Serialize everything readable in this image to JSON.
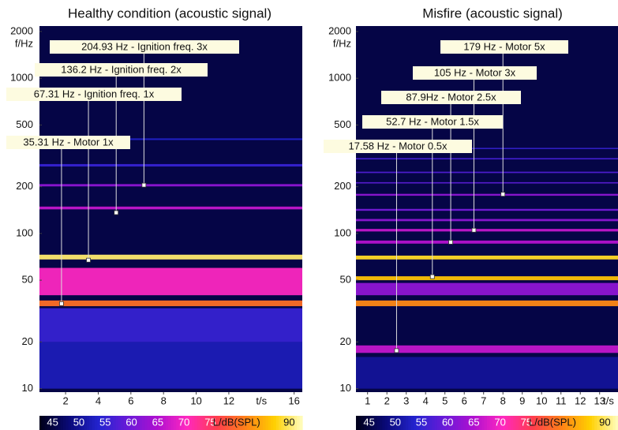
{
  "chart_data": [
    {
      "type": "spectrogram",
      "title": "Healthy condition (acoustic signal)",
      "ylabel": "f/Hz",
      "xlabel": "t/s",
      "ylog": true,
      "ylim": [
        9.5,
        2170
      ],
      "yticks": [
        10,
        20,
        50,
        100,
        200,
        500,
        1000,
        2000
      ],
      "xlim": [
        0.4,
        16.5
      ],
      "xticks": [
        2,
        4,
        6,
        8,
        10,
        12,
        16
      ],
      "clim": [
        42.5,
        92.5
      ],
      "cticks": [
        45,
        50,
        55,
        60,
        65,
        70,
        75,
        90
      ],
      "clabel": "L/dB(SPL)",
      "colormap": [
        "#00001c",
        "#0a0a7a",
        "#2424d0",
        "#6a1ad8",
        "#b010d0",
        "#ff28c0",
        "#ff3c50",
        "#ff8018",
        "#ffd000",
        "#ffffc8"
      ],
      "background_level": 45,
      "bands": [
        {
          "f_low": 10,
          "f_high": 20,
          "level": 52
        },
        {
          "f_low": 20,
          "f_high": 33,
          "level": 55
        },
        {
          "f_low": 40,
          "f_high": 60,
          "level": 70
        },
        {
          "f_low": 34,
          "f_high": 37,
          "level": 80
        },
        {
          "f_low": 68,
          "f_high": 73,
          "level": 90
        },
        {
          "f_low": 143,
          "f_high": 149,
          "level": 66
        },
        {
          "f_low": 201,
          "f_high": 208,
          "level": 62
        },
        {
          "f_low": 270,
          "f_high": 280,
          "level": 55
        },
        {
          "f_low": 400,
          "f_high": 410,
          "level": 53
        }
      ],
      "annotations": [
        {
          "label": "204.93 Hz - Ignition freq. 3x",
          "x": 6.8,
          "y": 204.93
        },
        {
          "label": "136.2 Hz - Ignition freq. 2x",
          "x": 5.1,
          "y": 136.2
        },
        {
          "label": "67.31 Hz -  Ignition freq. 1x",
          "x": 3.4,
          "y": 67.31
        },
        {
          "label": "35.31 Hz - Motor 1x",
          "x": 1.75,
          "y": 35.31
        }
      ]
    },
    {
      "type": "spectrogram",
      "title": "Misfire (acoustic signal)",
      "ylabel": "f/Hz",
      "xlabel": "t/s",
      "ylog": true,
      "ylim": [
        9.5,
        2170
      ],
      "yticks": [
        10,
        20,
        50,
        100,
        200,
        500,
        1000,
        2000
      ],
      "xlim": [
        0.4,
        13.95
      ],
      "xticks": [
        1,
        2,
        3,
        4,
        5,
        6,
        7,
        8,
        9,
        10,
        11,
        12,
        13
      ],
      "clim": [
        42.5,
        92.5
      ],
      "cticks": [
        45,
        50,
        55,
        60,
        65,
        70,
        75,
        90
      ],
      "clabel": "L/dB(SPL)",
      "colormap": [
        "#00001c",
        "#0a0a7a",
        "#2424d0",
        "#6a1ad8",
        "#b010d0",
        "#ff28c0",
        "#ff3c50",
        "#ff8018",
        "#ffd000",
        "#ffffc8"
      ],
      "background_level": 45,
      "bands": [
        {
          "f_low": 10,
          "f_high": 16,
          "level": 50
        },
        {
          "f_low": 17,
          "f_high": 19,
          "level": 66
        },
        {
          "f_low": 40,
          "f_high": 48,
          "level": 62
        },
        {
          "f_low": 34,
          "f_high": 37,
          "level": 82
        },
        {
          "f_low": 50,
          "f_high": 53,
          "level": 86
        },
        {
          "f_low": 68,
          "f_high": 72,
          "level": 88
        },
        {
          "f_low": 86,
          "f_high": 90,
          "level": 65
        },
        {
          "f_low": 103,
          "f_high": 107,
          "level": 66
        },
        {
          "f_low": 120,
          "f_high": 124,
          "level": 62
        },
        {
          "f_low": 140,
          "f_high": 144,
          "level": 60
        },
        {
          "f_low": 175,
          "f_high": 180,
          "level": 62
        },
        {
          "f_low": 210,
          "f_high": 214,
          "level": 58
        },
        {
          "f_low": 245,
          "f_high": 250,
          "level": 57
        },
        {
          "f_low": 300,
          "f_high": 306,
          "level": 56
        },
        {
          "f_low": 350,
          "f_high": 356,
          "level": 55
        }
      ],
      "annotations": [
        {
          "label": "179 Hz - Motor 5x",
          "x": 8.0,
          "y": 179
        },
        {
          "label": "105 Hz - Motor 3x",
          "x": 6.5,
          "y": 105
        },
        {
          "label": "87.9Hz - Motor 2.5x",
          "x": 5.3,
          "y": 87.9
        },
        {
          "label": "52.7 Hz - Motor 1.5x",
          "x": 4.35,
          "y": 52.7
        },
        {
          "label": "17.58 Hz - Motor 0.5x",
          "x": 2.5,
          "y": 17.58
        }
      ]
    }
  ]
}
